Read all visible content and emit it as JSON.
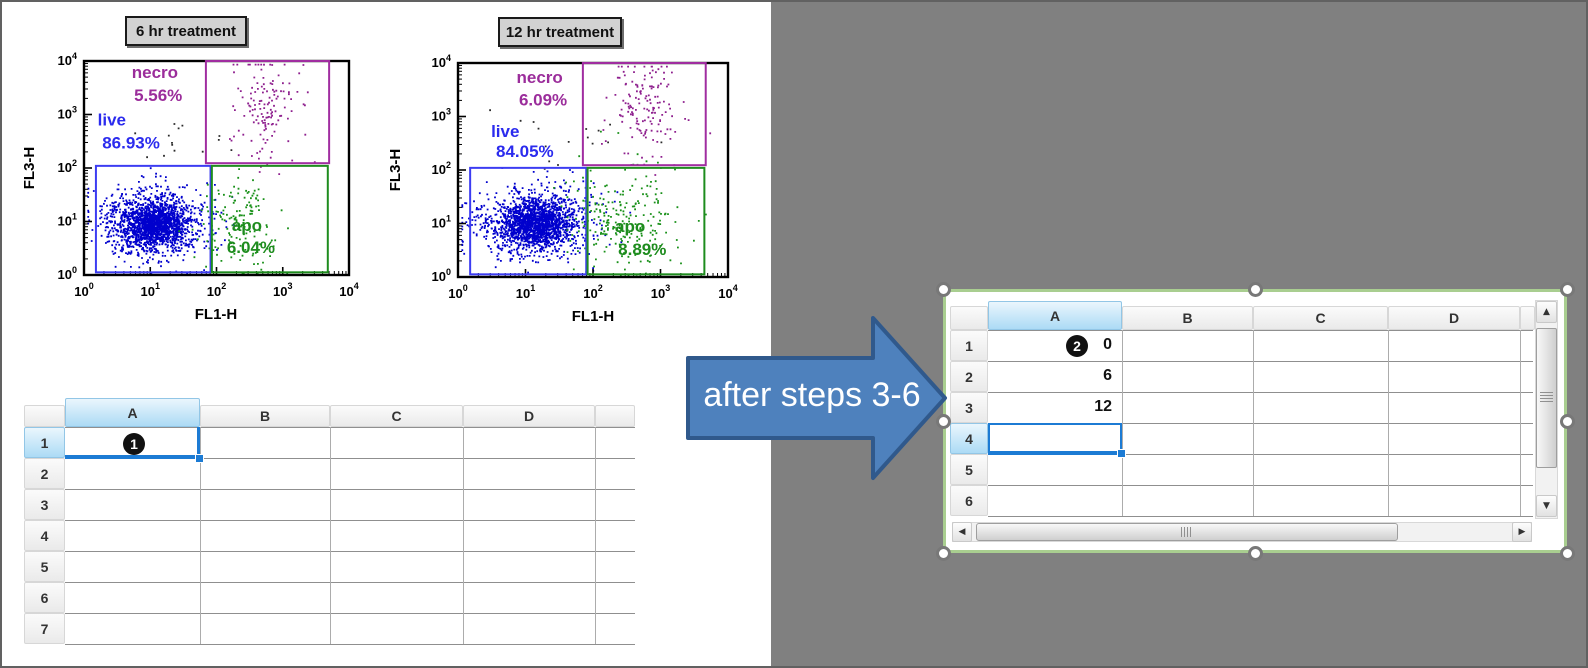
{
  "scene": {
    "background": "#808080",
    "panel": "#ffffff"
  },
  "arrow": {
    "label": "after steps 3-6",
    "fill": "#4E81BD",
    "stroke": "#30598C",
    "text_color": "#ffffff"
  },
  "colors": {
    "selection_blue": "#1C7BD4",
    "object_frame_green": "#A9CE90",
    "badge_bg": "#111111",
    "badge_text": "#ffffff"
  },
  "chart_data": [
    {
      "type": "scatter",
      "title": "6 hr treatment",
      "xlabel": "FL1-H",
      "ylabel": "FL3-H",
      "xscale": "log",
      "yscale": "log",
      "xlim": [
        1,
        10000
      ],
      "ylim": [
        1,
        10000
      ],
      "x_ticks": [
        0,
        1,
        2,
        3,
        4
      ],
      "y_ticks": [
        0,
        1,
        2,
        3,
        4
      ],
      "gates": [
        {
          "name": "necro-gate",
          "color": "#A02DA0",
          "x0": 1.84,
          "y0": 2.09,
          "x1": 3.7,
          "y1": 4.0
        },
        {
          "name": "live-gate",
          "color": "#3C3CF2",
          "x0": 0.18,
          "y0": 0.05,
          "x1": 1.91,
          "y1": 2.04
        },
        {
          "name": "apo-gate",
          "color": "#1E8C1E",
          "x0": 1.93,
          "y0": 0.05,
          "x1": 3.68,
          "y1": 2.04
        }
      ],
      "annotations": [
        {
          "text": "necro",
          "color": "#9B2D9B",
          "x": 1.07,
          "y": 3.68
        },
        {
          "text": "5.56%",
          "color": "#9B2D9B",
          "x": 1.12,
          "y": 3.25
        },
        {
          "text": "live",
          "color": "#2B2BEE",
          "x": 0.42,
          "y": 2.79
        },
        {
          "text": "86.93%",
          "color": "#2B2BEE",
          "x": 0.71,
          "y": 2.36
        },
        {
          "text": "apo",
          "color": "#1E8C1E",
          "x": 2.46,
          "y": 0.82
        },
        {
          "text": "6.04%",
          "color": "#1E8C1E",
          "x": 2.52,
          "y": 0.41
        }
      ],
      "populations": [
        {
          "name": "live-halo",
          "color": "#0000CD",
          "n": 900,
          "cx": 1.02,
          "cy": 1.0,
          "sx": 0.42,
          "sy": 0.33,
          "seed": 1
        },
        {
          "name": "live-core",
          "color": "#0000CD",
          "n": 1100,
          "cx": 1.05,
          "cy": 0.95,
          "sx": 0.22,
          "sy": 0.2,
          "seed": 2
        },
        {
          "name": "apo-cells",
          "color": "#189018",
          "n": 150,
          "cx": 2.35,
          "cy": 1.0,
          "sx": 0.32,
          "sy": 0.45,
          "seed": 3
        },
        {
          "name": "necro-cells",
          "color": "#8E1F8E",
          "n": 140,
          "cx": 2.72,
          "cy": 3.1,
          "sx": 0.28,
          "sy": 0.5,
          "seed": 4
        },
        {
          "name": "debris",
          "color": "#2A2A2A",
          "n": 14,
          "cx": 1.55,
          "cy": 2.4,
          "sx": 0.45,
          "sy": 0.25,
          "seed": 9
        }
      ]
    },
    {
      "type": "scatter",
      "title": "12 hr treatment",
      "xlabel": "FL1-H",
      "ylabel": "FL3-H",
      "xscale": "log",
      "yscale": "log",
      "xlim": [
        1,
        10000
      ],
      "ylim": [
        1,
        10000
      ],
      "x_ticks": [
        0,
        1,
        2,
        3,
        4
      ],
      "y_ticks": [
        0,
        1,
        2,
        3,
        4
      ],
      "gates": [
        {
          "name": "necro-gate",
          "color": "#A02DA0",
          "x0": 1.85,
          "y0": 2.09,
          "x1": 3.67,
          "y1": 4.0
        },
        {
          "name": "live-gate",
          "color": "#3C3CF2",
          "x0": 0.18,
          "y0": 0.05,
          "x1": 1.9,
          "y1": 2.04
        },
        {
          "name": "apo-gate",
          "color": "#1E8C1E",
          "x0": 1.92,
          "y0": 0.05,
          "x1": 3.65,
          "y1": 2.04
        }
      ],
      "annotations": [
        {
          "text": "necro",
          "color": "#9B2D9B",
          "x": 1.21,
          "y": 3.63
        },
        {
          "text": "6.09%",
          "color": "#9B2D9B",
          "x": 1.26,
          "y": 3.21
        },
        {
          "text": "live",
          "color": "#2B2BEE",
          "x": 0.7,
          "y": 2.62
        },
        {
          "text": "84.05%",
          "color": "#2B2BEE",
          "x": 0.99,
          "y": 2.24
        },
        {
          "text": "apo",
          "color": "#1E8C1E",
          "x": 2.55,
          "y": 0.84
        },
        {
          "text": "8.89%",
          "color": "#1E8C1E",
          "x": 2.73,
          "y": 0.41
        }
      ],
      "populations": [
        {
          "name": "live-halo",
          "color": "#0000CD",
          "n": 900,
          "cx": 1.1,
          "cy": 1.05,
          "sx": 0.45,
          "sy": 0.33,
          "seed": 5
        },
        {
          "name": "live-core",
          "color": "#0000CD",
          "n": 1100,
          "cx": 1.15,
          "cy": 1.0,
          "sx": 0.24,
          "sy": 0.2,
          "seed": 6
        },
        {
          "name": "apo-cells",
          "color": "#189018",
          "n": 230,
          "cx": 2.45,
          "cy": 1.1,
          "sx": 0.4,
          "sy": 0.5,
          "seed": 7
        },
        {
          "name": "necro-cells",
          "color": "#8E1F8E",
          "n": 150,
          "cx": 2.8,
          "cy": 3.15,
          "sx": 0.28,
          "sy": 0.45,
          "seed": 8
        },
        {
          "name": "debris",
          "color": "#2A2A2A",
          "n": 16,
          "cx": 1.7,
          "cy": 2.45,
          "sx": 0.5,
          "sy": 0.3,
          "seed": 10
        }
      ]
    }
  ],
  "sheet_before": {
    "step_badge": "1",
    "columns": [
      "A",
      "B",
      "C",
      "D"
    ],
    "rows": [
      "1",
      "2",
      "3",
      "4",
      "5",
      "6",
      "7"
    ],
    "selected_cell": "A1",
    "values": []
  },
  "sheet_after": {
    "step_badge": "2",
    "columns": [
      "A",
      "B",
      "C",
      "D"
    ],
    "rows": [
      "1",
      "2",
      "3",
      "4",
      "5",
      "6"
    ],
    "selected_cell": "A4",
    "column_a_values": [
      "0",
      "6",
      "12"
    ]
  }
}
